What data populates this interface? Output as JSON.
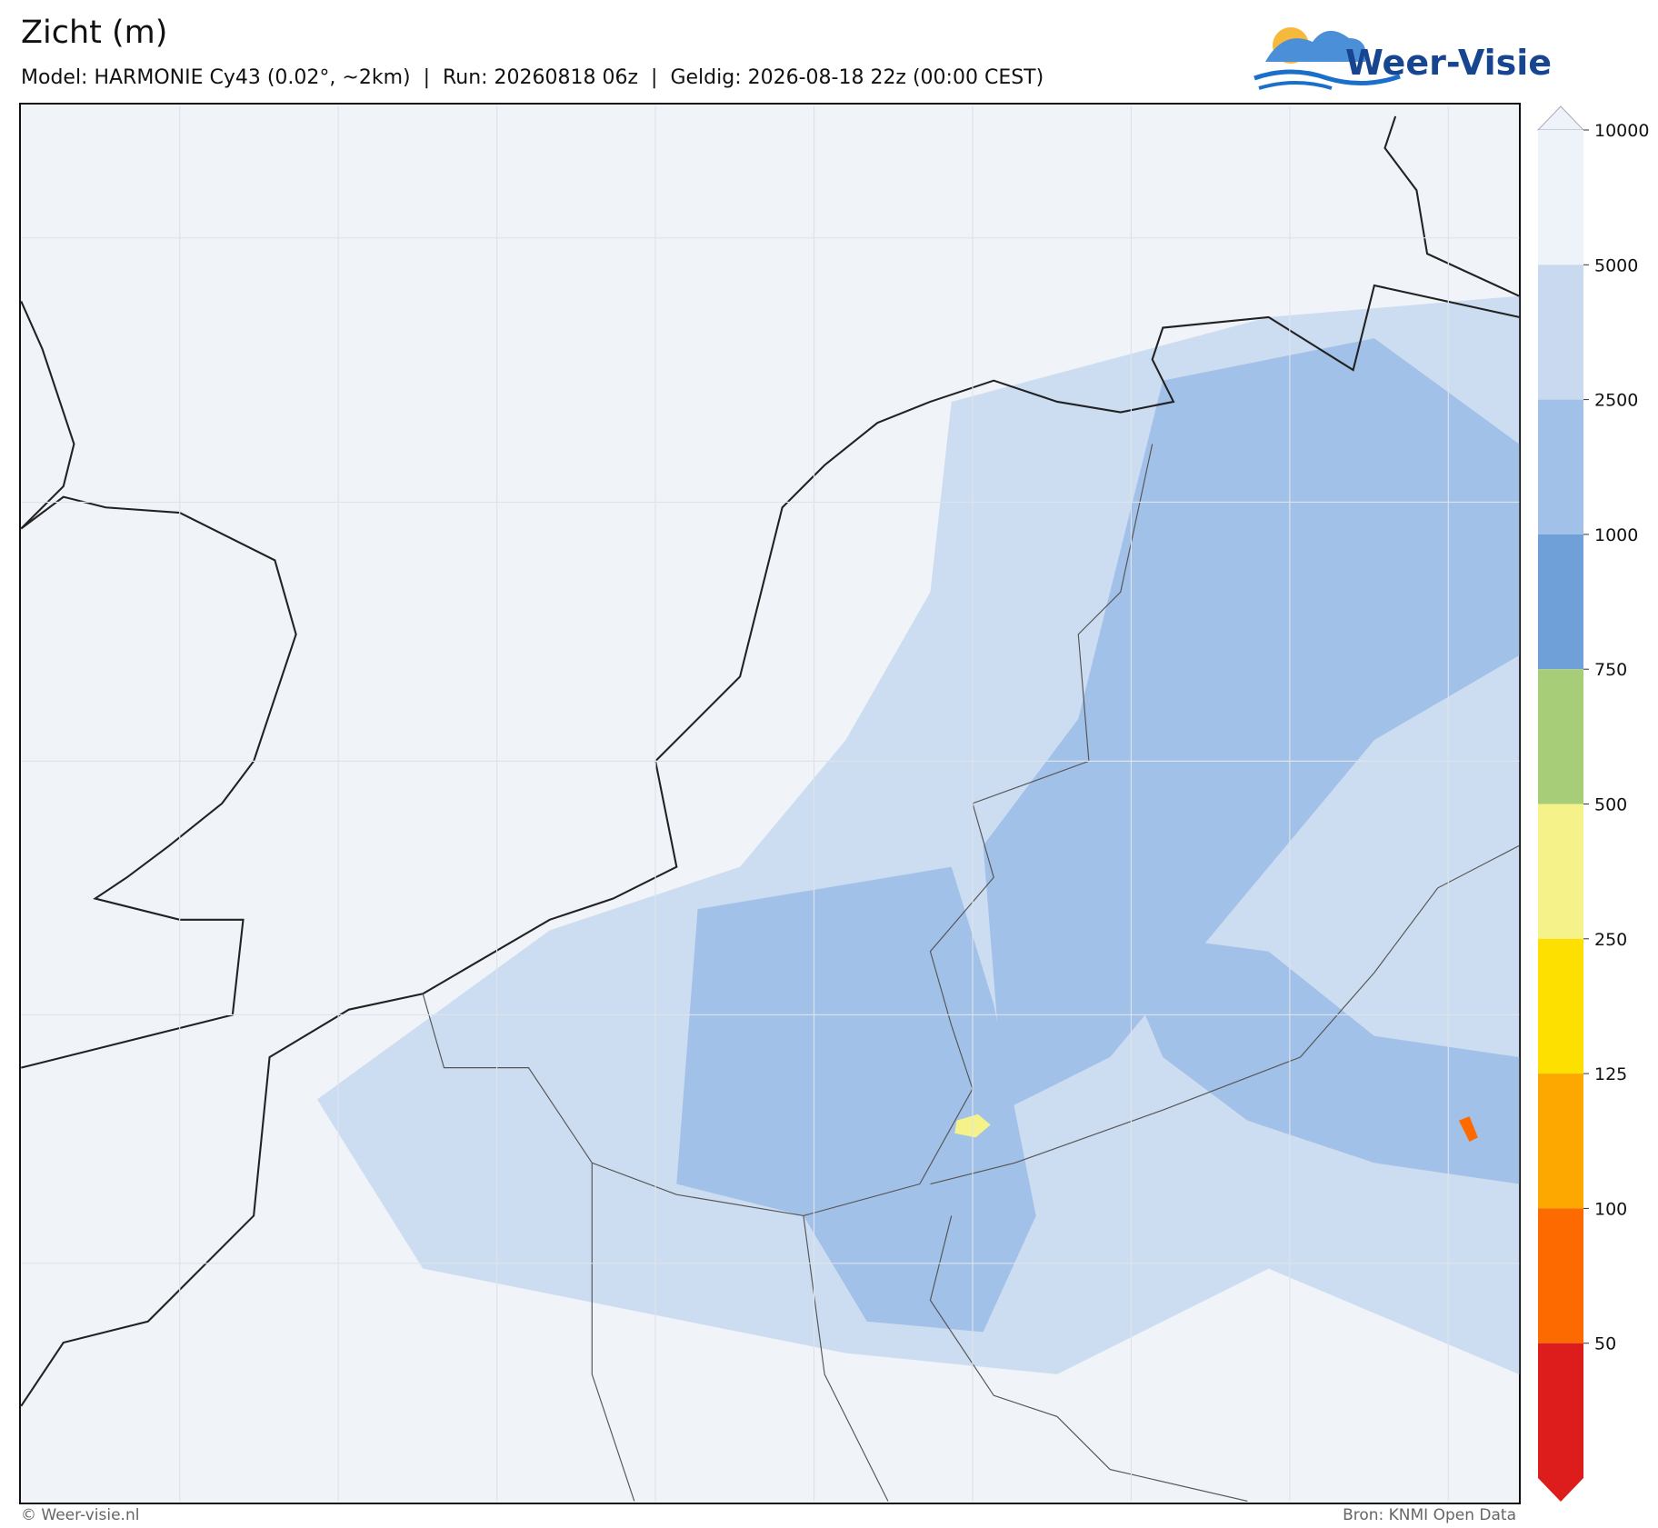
{
  "header": {
    "title": "Zicht (m)",
    "subtitle": "Model: HARMONIE Cy43 (0.02°, ~2km)  |  Run: 20260818 06z  |  Geldig: 2026-08-18 22z (00:00 CEST)",
    "logo": "Weer-Visie"
  },
  "colorbar": {
    "levels": [
      10000,
      5000,
      2500,
      1000,
      750,
      500,
      250,
      125,
      100,
      50
    ],
    "colors": [
      "#eef3fa",
      "#c9daf0",
      "#a2c1e8",
      "#6fa0d8",
      "#a8cd78",
      "#f5f28a",
      "#fde000",
      "#fca800",
      "#fd6b00",
      "#dd1c1c"
    ]
  },
  "footer": {
    "left": "© Weer-visie.nl",
    "right": "Bron: KNMI Open Data"
  }
}
